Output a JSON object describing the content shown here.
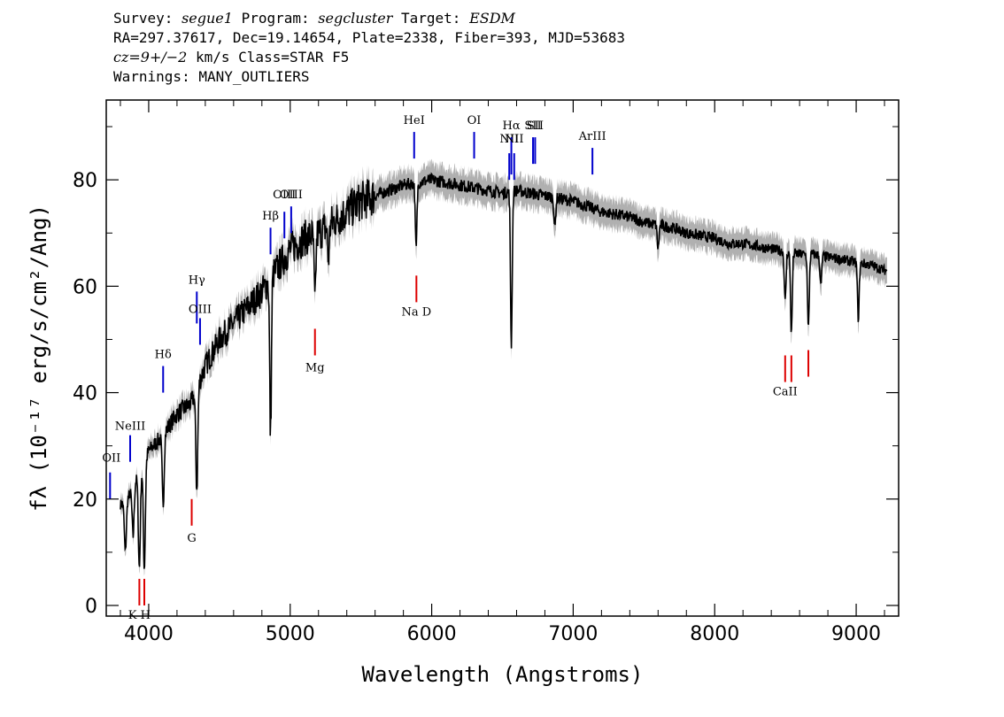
{
  "header": {
    "survey_key": "Survey:",
    "survey": "segue1",
    "program_key": "Program:",
    "program": "segcluster",
    "target_key": "Target:",
    "target": "ESDM",
    "line2": "RA=297.37617, Dec=19.14654, Plate=2338, Fiber=393, MJD=53683",
    "cz": "cz=9+/−2",
    "cz_rest": "km/s  Class=STAR  F5",
    "warnings": "Warnings: MANY_OUTLIERS"
  },
  "colors": {
    "emission": "#0000cc",
    "absorption": "#dd0000",
    "spectrum": "#000000",
    "error": "#b0b0b0"
  },
  "chart_data": {
    "type": "line",
    "title": "",
    "xlabel": "Wavelength (Angstroms)",
    "ylabel": "fλ (10⁻¹⁷ erg/s/cm²/Ang)",
    "xlim": [
      3700,
      9300
    ],
    "ylim": [
      -2,
      95
    ],
    "x_ticks": [
      4000,
      5000,
      6000,
      7000,
      8000,
      9000
    ],
    "y_ticks": [
      0,
      20,
      40,
      60,
      80
    ],
    "continuum": {
      "x": [
        3800,
        3850,
        3900,
        3950,
        4000,
        4100,
        4200,
        4300,
        4400,
        4500,
        4600,
        4700,
        4800,
        4900,
        5000,
        5100,
        5200,
        5300,
        5400,
        5500,
        5600,
        5700,
        5800,
        5900,
        6000,
        6100,
        6200,
        6300,
        6400,
        6500,
        6600,
        6700,
        6800,
        6900,
        7000,
        7100,
        7200,
        7300,
        7400,
        7500,
        7600,
        7700,
        7800,
        7900,
        8000,
        8100,
        8200,
        8300,
        8400,
        8500,
        8600,
        8700,
        8800,
        8900,
        9000,
        9100,
        9200
      ],
      "y": [
        19,
        20,
        23,
        26,
        29,
        32,
        36,
        38,
        45,
        50,
        53,
        56,
        59,
        63,
        67,
        69,
        70,
        72,
        74,
        76,
        77,
        78,
        79,
        79.5,
        80,
        79.5,
        79,
        78.5,
        78,
        77.5,
        78,
        77.5,
        77,
        76.5,
        76,
        75,
        74,
        73.5,
        73,
        72,
        71.5,
        71,
        70,
        69.5,
        69,
        68,
        68,
        67.5,
        67,
        66.5,
        66,
        66,
        65.5,
        65,
        64.5,
        64,
        63
      ]
    },
    "absorption_dips": [
      {
        "x": 3835,
        "y": 10
      },
      {
        "x": 3890,
        "y": 13
      },
      {
        "x": 3934,
        "y": 7
      },
      {
        "x": 3969,
        "y": 7
      },
      {
        "x": 4102,
        "y": 19
      },
      {
        "x": 4340,
        "y": 22
      },
      {
        "x": 4861,
        "y": 32
      },
      {
        "x": 5175,
        "y": 57
      },
      {
        "x": 5270,
        "y": 65
      },
      {
        "x": 5890,
        "y": 67
      },
      {
        "x": 6563,
        "y": 49
      },
      {
        "x": 6870,
        "y": 71
      },
      {
        "x": 7600,
        "y": 67
      },
      {
        "x": 8498,
        "y": 57
      },
      {
        "x": 8542,
        "y": 51
      },
      {
        "x": 8662,
        "y": 52
      },
      {
        "x": 8750,
        "y": 60
      },
      {
        "x": 9015,
        "y": 54
      }
    ],
    "emission_markers": [
      {
        "label": "OII",
        "x": 3727,
        "y0": 20,
        "y1": 25,
        "label_y": 27,
        "ha": "end"
      },
      {
        "label": "NeIII",
        "x": 3869,
        "y0": 27,
        "y1": 32,
        "label_y": 33
      },
      {
        "label": "Hδ",
        "x": 4102,
        "y0": 40,
        "y1": 45,
        "label_y": 46.5
      },
      {
        "label": "Hγ",
        "x": 4340,
        "y0": 59,
        "y1": 53,
        "label_y": 60.5
      },
      {
        "label": "OIII",
        "x": 4363,
        "y0": 49,
        "y1": 54,
        "label_y": 55
      },
      {
        "label": "Hβ",
        "x": 4861,
        "y0": 66,
        "y1": 71,
        "label_y": 72.5
      },
      {
        "label": "OIII",
        "x": 4959,
        "y0": 69,
        "y1": 74,
        "label_y": 76.5
      },
      {
        "label": "OIII",
        "x": 5007,
        "y0": 70,
        "y1": 75,
        "label_y": 76.5
      },
      {
        "label": "HeI",
        "x": 5876,
        "y0": 84,
        "y1": 89,
        "label_y": 90.5
      },
      {
        "label": "OI",
        "x": 6300,
        "y0": 84,
        "y1": 89,
        "label_y": 90.5
      },
      {
        "label": "NII",
        "x": 6548,
        "y0": 80,
        "y1": 85,
        "label_y": 87
      },
      {
        "label": "Hα",
        "x": 6563,
        "y0": 81,
        "y1": 88,
        "label_y": 89.5
      },
      {
        "label": "NII",
        "x": 6583,
        "y0": 80,
        "y1": 85,
        "label_y": 87
      },
      {
        "label": "SII",
        "x": 6716,
        "y0": 83,
        "y1": 88,
        "label_y": 89.5
      },
      {
        "label": "SII",
        "x": 6731,
        "y0": 83,
        "y1": 88,
        "label_y": 89.5
      },
      {
        "label": "ArIII",
        "x": 7136,
        "y0": 81,
        "y1": 86,
        "label_y": 87.5
      }
    ],
    "absorption_markers": [
      {
        "label": "K H",
        "x": 3934,
        "y0": 0,
        "y1": 5,
        "label_y": -2.5
      },
      {
        "label": "",
        "x": 3969,
        "y0": 0,
        "y1": 5
      },
      {
        "label": "G",
        "x": 4304,
        "y0": 15,
        "y1": 20,
        "label_y": 12
      },
      {
        "label": "Mg",
        "x": 5175,
        "y0": 47,
        "y1": 52,
        "label_y": 44
      },
      {
        "label": "Na D",
        "x": 5892,
        "y0": 57,
        "y1": 62,
        "label_y": 54.5
      },
      {
        "label": "CaII",
        "x": 8498,
        "y0": 42,
        "y1": 47,
        "label_y": 39.5
      },
      {
        "label": "",
        "x": 8542,
        "y0": 42,
        "y1": 47
      },
      {
        "label": "",
        "x": 8662,
        "y0": 43,
        "y1": 48
      }
    ]
  }
}
